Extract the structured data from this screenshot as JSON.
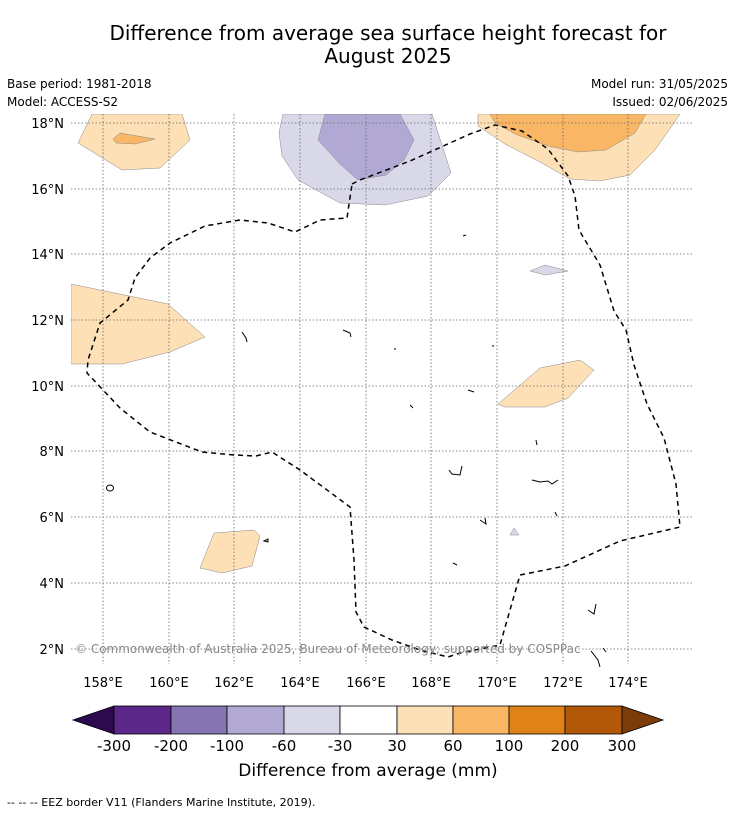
{
  "title_line1": "Difference from average sea surface height forecast for",
  "title_line2": "August 2025",
  "base_period": "Base period: 1981-2018",
  "model": "Model: ACCESS-S2",
  "model_run": "Model run: 31/05/2025",
  "issued": "Issued: 02/06/2025",
  "copyright": "© Commonwealth of Australia 2025, Bureau of Meteorology; supported by COSPPac",
  "map": {
    "lon_ticks": [
      "158°E",
      "160°E",
      "162°E",
      "164°E",
      "166°E",
      "168°E",
      "170°E",
      "172°E",
      "174°E"
    ],
    "lat_ticks": [
      "18°N",
      "16°N",
      "14°N",
      "12°N",
      "10°N",
      "8°N",
      "6°N",
      "4°N",
      "2°N"
    ],
    "colors": {
      "pos_30_60": "#fde0b6",
      "pos_60_100": "#f9b765",
      "neg_30_60": "#d8d8e9",
      "neg_60_100": "#b1a9d3",
      "eez_border": "#000000"
    }
  },
  "colorbar": {
    "title": "Difference from average (mm)",
    "labels": [
      "-300",
      "-200",
      "-100",
      "-60",
      "-30",
      "30",
      "60",
      "100",
      "200",
      "300"
    ],
    "colors": [
      "#2d0a4d",
      "#5b2789",
      "#8474b1",
      "#b1a9d3",
      "#d8d8e9",
      "#ffffff",
      "#fde0b6",
      "#f9b765",
      "#e08317",
      "#b25809",
      "#7e3b0a"
    ]
  },
  "footer": "--  --  -- EEZ border V11 (Flanders Marine Institute, 2019)."
}
